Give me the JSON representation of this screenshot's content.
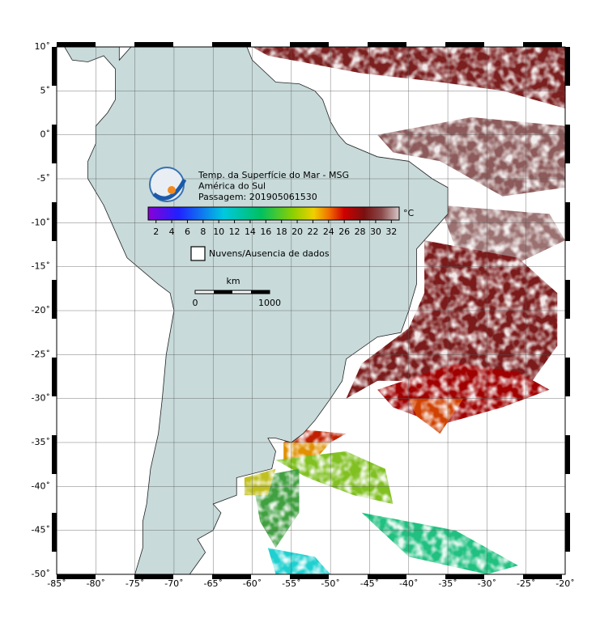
{
  "map": {
    "title_lines": [
      "Temp. da Superfície do Mar - MSG",
      "América do Sul",
      "Passagem: 201905061530"
    ],
    "colorbar": {
      "lim": [
        1,
        33
      ],
      "ticks": [
        2,
        4,
        6,
        8,
        10,
        12,
        14,
        16,
        18,
        20,
        22,
        24,
        26,
        28,
        30,
        32
      ],
      "unit": "°C"
    },
    "legend": "Nuvens/Ausencia de dados",
    "scale_bar": {
      "unit": "km",
      "start": 0,
      "end": 1000
    },
    "lonlim": [
      -85,
      -20
    ],
    "latlim": [
      -50,
      10
    ],
    "lon_ticks": [
      {
        "value": -85,
        "label": "-85˚"
      },
      {
        "value": -80,
        "label": "-80˚"
      },
      {
        "value": -75,
        "label": "-75˚"
      },
      {
        "value": -70,
        "label": "-70˚"
      },
      {
        "value": -65,
        "label": "-65˚"
      },
      {
        "value": -60,
        "label": "-60˚"
      },
      {
        "value": -55,
        "label": "-55˚"
      },
      {
        "value": -50,
        "label": "-50˚"
      },
      {
        "value": -45,
        "label": "-45˚"
      },
      {
        "value": -40,
        "label": "-40˚"
      },
      {
        "value": -35,
        "label": "-35˚"
      },
      {
        "value": -30,
        "label": "-30˚"
      },
      {
        "value": -25,
        "label": "-25˚"
      },
      {
        "value": -20,
        "label": "-20˚"
      }
    ],
    "lat_ticks": [
      {
        "value": 10,
        "label": "10˚"
      },
      {
        "value": 5,
        "label": "5˚"
      },
      {
        "value": 0,
        "label": "0˚"
      },
      {
        "value": -5,
        "label": "-5˚"
      },
      {
        "value": -10,
        "label": "-10˚"
      },
      {
        "value": -15,
        "label": "-15˚"
      },
      {
        "value": -20,
        "label": "-20˚"
      },
      {
        "value": -25,
        "label": "-25˚"
      },
      {
        "value": -30,
        "label": "-30˚"
      },
      {
        "value": -35,
        "label": "-35˚"
      },
      {
        "value": -40,
        "label": "-40˚"
      },
      {
        "value": -45,
        "label": "-45˚"
      },
      {
        "value": -50,
        "label": "-50˚"
      }
    ]
  }
}
